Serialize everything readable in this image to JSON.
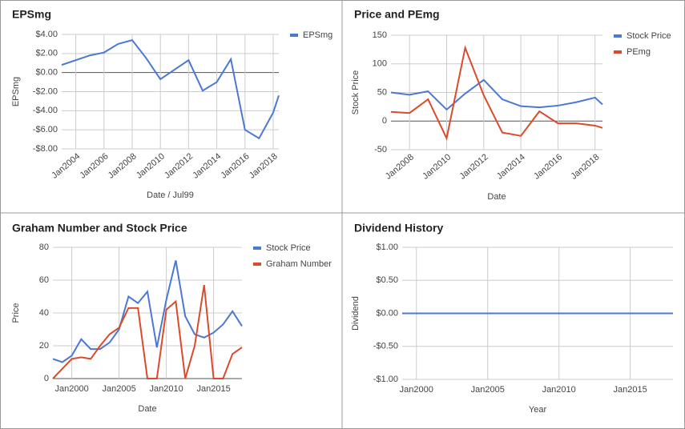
{
  "chart_data": [
    {
      "type": "line",
      "title": "EPSmg",
      "x_label": "Date / Jul99",
      "y_label": "EPSmg",
      "x": [
        2003,
        2004,
        2005,
        2006,
        2007,
        2008,
        2009,
        2010,
        2011,
        2012,
        2013,
        2014,
        2015,
        2016,
        2017,
        2018,
        2018.4
      ],
      "series": [
        {
          "name": "EPSmg",
          "color": "#4a78d4",
          "values": [
            0.8,
            1.3,
            1.8,
            2.1,
            3.0,
            3.4,
            1.5,
            -0.7,
            0.3,
            1.3,
            -1.9,
            -1.0,
            1.4,
            -6.0,
            -6.9,
            -4.2,
            -2.4
          ]
        }
      ],
      "xlim": [
        2003,
        2018.4
      ],
      "ylim": [
        -8,
        4
      ],
      "xticks": [
        {
          "value": 2004,
          "label": "Jan2004"
        },
        {
          "value": 2006,
          "label": "Jan2006"
        },
        {
          "value": 2008,
          "label": "Jan2008"
        },
        {
          "value": 2010,
          "label": "Jan2010"
        },
        {
          "value": 2012,
          "label": "Jan2012"
        },
        {
          "value": 2014,
          "label": "Jan2014"
        },
        {
          "value": 2016,
          "label": "Jan2016"
        },
        {
          "value": 2018,
          "label": "Jan2018"
        }
      ],
      "yticks": [
        {
          "value": 4,
          "label": "$4.00"
        },
        {
          "value": 2,
          "label": "$2.00"
        },
        {
          "value": 0,
          "label": "$0.00"
        },
        {
          "value": -2,
          "label": "-$2.00"
        },
        {
          "value": -4,
          "label": "-$4.00"
        },
        {
          "value": -6,
          "label": "-$6.00"
        },
        {
          "value": -8,
          "label": "-$8.00"
        }
      ],
      "grid": true,
      "legend": "right"
    },
    {
      "type": "line",
      "title": "Price and PEmg",
      "x_label": "Date",
      "y_label": "Stock Price",
      "x": [
        2007,
        2008,
        2009,
        2010,
        2011,
        2012,
        2013,
        2014,
        2015,
        2016,
        2017,
        2018,
        2018.4
      ],
      "series": [
        {
          "name": "Stock Price",
          "color": "#4a78d4",
          "values": [
            50,
            46,
            52,
            20,
            48,
            72,
            38,
            26,
            24,
            27,
            33,
            41,
            29
          ]
        },
        {
          "name": "PEmg",
          "color": "#dc4a2c",
          "values": [
            16,
            14,
            38,
            -30,
            128,
            45,
            -20,
            -26,
            17,
            -4,
            -4,
            -8,
            -12
          ]
        }
      ],
      "xlim": [
        2007,
        2018.4
      ],
      "ylim": [
        -50,
        150
      ],
      "xticks": [
        {
          "value": 2008,
          "label": "Jan2008"
        },
        {
          "value": 2010,
          "label": "Jan2010"
        },
        {
          "value": 2012,
          "label": "Jan2012"
        },
        {
          "value": 2014,
          "label": "Jan2014"
        },
        {
          "value": 2016,
          "label": "Jan2016"
        },
        {
          "value": 2018,
          "label": "Jan2018"
        }
      ],
      "yticks": [
        150,
        100,
        50,
        0,
        -50
      ],
      "grid": true,
      "legend": "right"
    },
    {
      "type": "line",
      "title": "Graham Number and Stock Price",
      "x_label": "Date",
      "y_label": "Price",
      "x": [
        1998,
        1999,
        2000,
        2001,
        2002,
        2003,
        2004,
        2005,
        2006,
        2007,
        2008,
        2009,
        2010,
        2011,
        2012,
        2013,
        2014,
        2015,
        2016,
        2017,
        2018
      ],
      "series": [
        {
          "name": "Stock Price",
          "color": "#4a78d4",
          "values": [
            12,
            10,
            14,
            24,
            18,
            18,
            22,
            30,
            50,
            46,
            53,
            19,
            48,
            72,
            38,
            27,
            25,
            28,
            33,
            41,
            32
          ]
        },
        {
          "name": "Graham Number",
          "color": "#dc4a2c",
          "values": [
            0,
            6,
            12,
            13,
            12,
            20,
            27,
            31,
            43,
            43,
            0,
            0,
            42,
            47,
            0,
            20,
            57,
            0,
            0,
            15,
            19
          ]
        }
      ],
      "xlim": [
        1998,
        2018
      ],
      "ylim": [
        0,
        80
      ],
      "xticks": [
        {
          "value": 2000,
          "label": "Jan2000"
        },
        {
          "value": 2005,
          "label": "Jan2005"
        },
        {
          "value": 2010,
          "label": "Jan2010"
        },
        {
          "value": 2015,
          "label": "Jan2015"
        }
      ],
      "yticks": [
        80,
        60,
        40,
        20,
        0
      ],
      "grid": true,
      "legend": "right"
    },
    {
      "type": "line",
      "title": "Dividend History",
      "x_label": "Year",
      "y_label": "Dividend",
      "x": [
        1999,
        2018
      ],
      "series": [
        {
          "color": "#4a78d4",
          "values": [
            0,
            0
          ]
        }
      ],
      "xlim": [
        1999,
        2018
      ],
      "ylim": [
        -1,
        1
      ],
      "xticks": [
        {
          "value": 2000,
          "label": "Jan2000"
        },
        {
          "value": 2005,
          "label": "Jan2005"
        },
        {
          "value": 2010,
          "label": "Jan2010"
        },
        {
          "value": 2015,
          "label": "Jan2015"
        }
      ],
      "yticks": [
        {
          "value": 1,
          "label": "$1.00"
        },
        {
          "value": 0.5,
          "label": "$0.50"
        },
        {
          "value": 0,
          "label": "$0.00"
        },
        {
          "value": -0.5,
          "label": "-$0.50"
        },
        {
          "value": -1,
          "label": "-$1.00"
        }
      ],
      "grid": true
    }
  ]
}
